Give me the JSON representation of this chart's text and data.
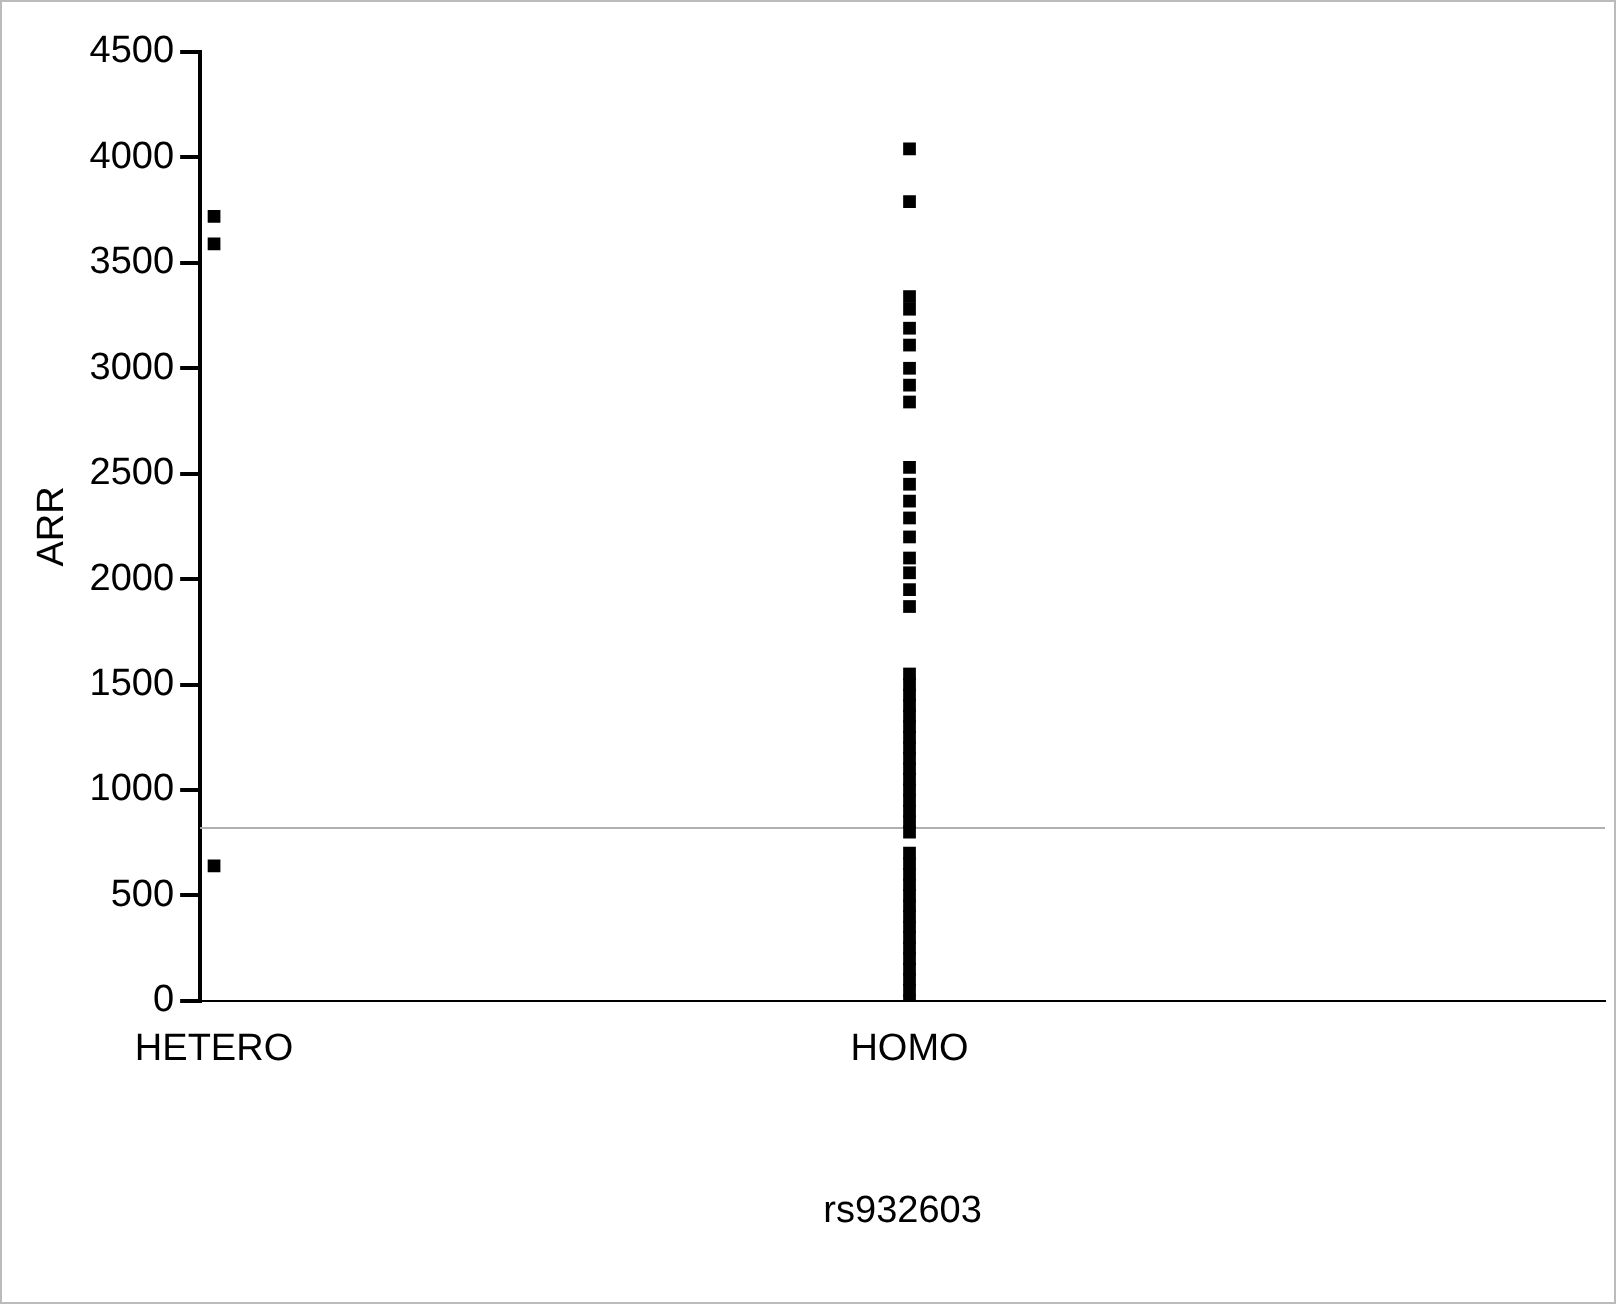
{
  "chart_data": {
    "type": "scatter",
    "xlabel": "rs932603",
    "ylabel": "ARR",
    "categories": [
      "HETERO",
      "HOMO"
    ],
    "series": [
      {
        "color": "#000000",
        "x": [
          "HETERO",
          "HETERO",
          "HETERO",
          "HOMO",
          "HOMO",
          "HOMO",
          "HOMO",
          "HOMO",
          "HOMO",
          "HOMO",
          "HOMO",
          "HOMO",
          "HOMO",
          "HOMO",
          "HOMO",
          "HOMO",
          "HOMO",
          "HOMO",
          "HOMO",
          "HOMO",
          "HOMO",
          "HOMO",
          "HOMO",
          "HOMO",
          "HOMO",
          "HOMO",
          "HOMO",
          "HOMO",
          "HOMO",
          "HOMO",
          "HOMO",
          "HOMO",
          "HOMO",
          "HOMO",
          "HOMO",
          "HOMO",
          "HOMO",
          "HOMO",
          "HOMO",
          "HOMO",
          "HOMO",
          "HOMO",
          "HOMO",
          "HOMO",
          "HOMO",
          "HOMO",
          "HOMO",
          "HOMO",
          "HOMO",
          "HOMO",
          "HOMO",
          "HOMO"
        ],
        "values": [
          3720,
          3590,
          640,
          0,
          50,
          100,
          150,
          200,
          250,
          300,
          350,
          400,
          450,
          500,
          550,
          600,
          650,
          700,
          800,
          850,
          900,
          950,
          1000,
          1050,
          1100,
          1150,
          1200,
          1250,
          1300,
          1350,
          1400,
          1450,
          1500,
          1550,
          1870,
          1950,
          2030,
          2100,
          2200,
          2290,
          2370,
          2450,
          2530,
          2840,
          2920,
          3000,
          3110,
          3190,
          3280,
          3340,
          3790,
          4040
        ]
      }
    ],
    "ylim": [
      0,
      4500
    ],
    "yticks": [
      0,
      500,
      1000,
      1500,
      2000,
      2500,
      3000,
      3500,
      4000,
      4500
    ],
    "ref_lines": [
      {
        "axis": "y",
        "value": 820,
        "color": "#b0b0b0"
      }
    ],
    "marker": "square",
    "grid": false,
    "legend": false
  }
}
